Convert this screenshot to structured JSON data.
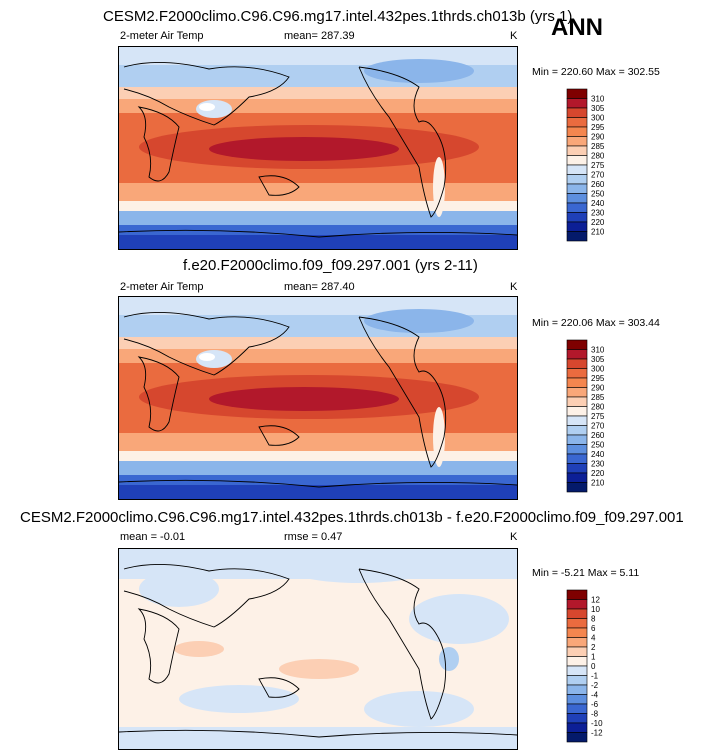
{
  "header": {
    "season": "ANN"
  },
  "panels": [
    {
      "title": "CESM2.F2000climo.C96.C96.mg17.intel.432pes.1thrds.ch013b (yrs 1)",
      "left_label": "2-meter Air Temp",
      "center_label": "mean= 287.39",
      "right_label": "K",
      "minmax": "Min = 220.60 Max = 302.55",
      "colorbar": {
        "levels": [
          "310",
          "305",
          "300",
          "295",
          "290",
          "285",
          "280",
          "275",
          "270",
          "260",
          "250",
          "240",
          "230",
          "220",
          "210"
        ],
        "colors": [
          "#7f0000",
          "#b2182b",
          "#d6472e",
          "#ea6b3f",
          "#f4864f",
          "#f9a779",
          "#fccfb4",
          "#fdf1e7",
          "#d6e5f7",
          "#b0cff1",
          "#8bb5ea",
          "#5d8fdf",
          "#3a67d1",
          "#1f40b8",
          "#0c1f96",
          "#041a6b"
        ]
      },
      "chart_data": {
        "type": "heatmap",
        "variable": "2-meter Air Temp",
        "units": "K",
        "mean": 287.39,
        "min": 220.6,
        "max": 302.55
      }
    },
    {
      "title": "f.e20.F2000climo.f09_f09.297.001 (yrs 2-11)",
      "left_label": "2-meter Air Temp",
      "center_label": "mean= 287.40",
      "right_label": "K",
      "minmax": "Min = 220.06 Max = 303.44",
      "colorbar": {
        "levels": [
          "310",
          "305",
          "300",
          "295",
          "290",
          "285",
          "280",
          "275",
          "270",
          "260",
          "250",
          "240",
          "230",
          "220",
          "210"
        ],
        "colors": [
          "#7f0000",
          "#b2182b",
          "#d6472e",
          "#ea6b3f",
          "#f4864f",
          "#f9a779",
          "#fccfb4",
          "#fdf1e7",
          "#d6e5f7",
          "#b0cff1",
          "#8bb5ea",
          "#5d8fdf",
          "#3a67d1",
          "#1f40b8",
          "#0c1f96",
          "#041a6b"
        ]
      },
      "chart_data": {
        "type": "heatmap",
        "variable": "2-meter Air Temp",
        "units": "K",
        "mean": 287.4,
        "min": 220.06,
        "max": 303.44
      }
    },
    {
      "title": "CESM2.F2000climo.C96.C96.mg17.intel.432pes.1thrds.ch013b - f.e20.F2000climo.f09_f09.297.001",
      "left_label": "mean =  -0.01",
      "center_label": "rmse =   0.47",
      "right_label": "K",
      "minmax": "Min =  -5.21 Max =   5.11",
      "colorbar": {
        "levels": [
          "12",
          "10",
          "8",
          "6",
          "4",
          "2",
          "1",
          "0",
          "-1",
          "-2",
          "-4",
          "-6",
          "-8",
          "-10",
          "-12"
        ],
        "colors": [
          "#7f0000",
          "#b2182b",
          "#d6472e",
          "#ea6b3f",
          "#f4864f",
          "#f9a779",
          "#fccfb4",
          "#fdf1e7",
          "#d6e5f7",
          "#b0cff1",
          "#8bb5ea",
          "#5d8fdf",
          "#3a67d1",
          "#1f40b8",
          "#0c1f96",
          "#041a6b"
        ]
      },
      "chart_data": {
        "type": "heatmap",
        "variable": "2-meter Air Temp difference",
        "units": "K",
        "mean": -0.01,
        "rmse": 0.47,
        "min": -5.21,
        "max": 5.11
      }
    }
  ]
}
